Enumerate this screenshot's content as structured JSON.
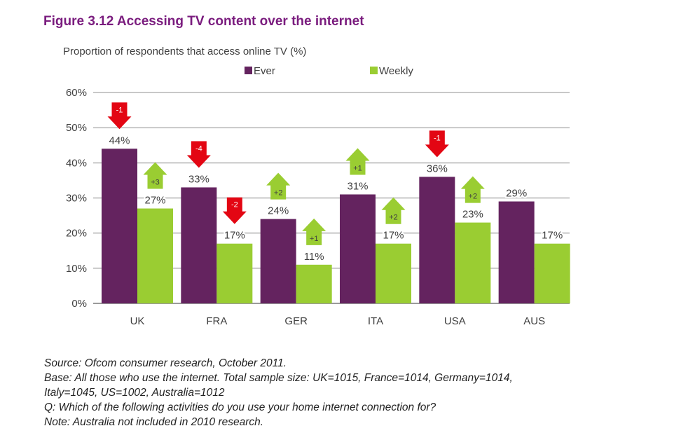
{
  "figure_title": "Figure 3.12  Accessing TV content over the internet",
  "colors": {
    "ever": "#64235f",
    "weekly": "#9acd32",
    "down": "#e30613",
    "up": "#9acd32",
    "title": "#7a1c7e"
  },
  "chart_data": {
    "type": "bar",
    "title": "Figure 3.12  Accessing TV content over the internet",
    "ylabel": "Proportion of respondents that access online TV (%)",
    "xlabel": "",
    "categories": [
      "UK",
      "FRA",
      "GER",
      "ITA",
      "USA",
      "AUS"
    ],
    "series": [
      {
        "name": "Ever",
        "values": [
          44,
          33,
          24,
          31,
          36,
          29
        ],
        "value_labels": [
          "44%",
          "33%",
          "24%",
          "31%",
          "36%",
          "29%"
        ],
        "changes": [
          "-1",
          "-4",
          "+2",
          "+1",
          "-1",
          ""
        ]
      },
      {
        "name": "Weekly",
        "values": [
          27,
          17,
          11,
          17,
          23,
          17
        ],
        "value_labels": [
          "27%",
          "17%",
          "11%",
          "17%",
          "23%",
          "17%"
        ],
        "changes": [
          "+3",
          "-2",
          "+1",
          "+2",
          "+2",
          ""
        ]
      }
    ],
    "ylim": [
      0,
      60
    ],
    "yticks": [
      0,
      10,
      20,
      30,
      40,
      50,
      60
    ],
    "ytick_labels": [
      "0%",
      "10%",
      "20%",
      "30%",
      "40%",
      "50%",
      "60%"
    ],
    "grid": true,
    "legend_position": "top"
  },
  "notes": [
    "Source: Ofcom consumer research, October 2011.",
    "Base: All those who use the internet. Total sample size: UK=1015, France=1014, Germany=1014,",
    "Italy=1045, US=1002, Australia=1012",
    "Q: Which of the following activities do you use your home internet connection for?",
    "Note: Australia not included in 2010 research."
  ]
}
